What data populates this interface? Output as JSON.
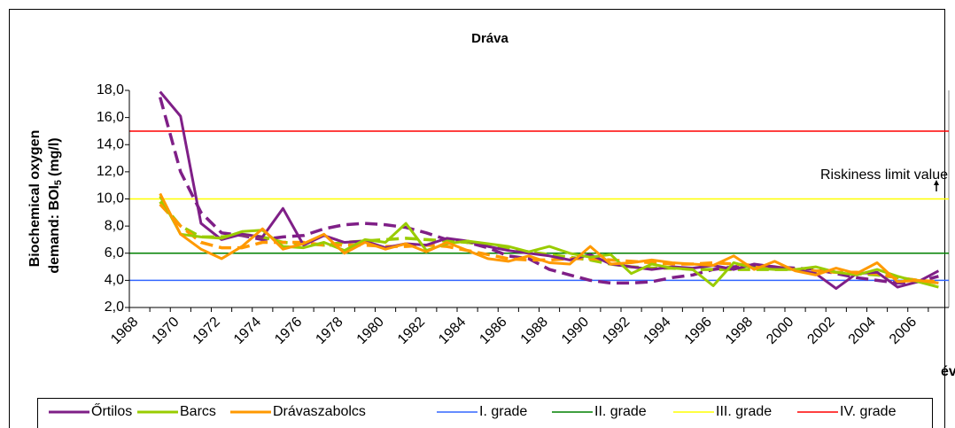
{
  "chart_data": {
    "type": "line",
    "title": "Dráva",
    "y_label": [
      "Biochemical oxygen",
      "demand: BOI",
      "5",
      "(mg/l)"
    ],
    "x_label": "év",
    "annotation": "Riskiness limit value",
    "categories": [
      "1968",
      null,
      "1970",
      null,
      "1972",
      null,
      "1974",
      null,
      "1976",
      null,
      "1978",
      null,
      "1980",
      null,
      "1982",
      null,
      "1984",
      null,
      "1986",
      null,
      "1988",
      null,
      "1990",
      null,
      "1992",
      null,
      "1994",
      null,
      "1996",
      null,
      "1998",
      null,
      "2000",
      null,
      "2002",
      null,
      "2004",
      null,
      "2006",
      null
    ],
    "ylim": [
      2,
      18
    ],
    "yticks": [
      {
        "value": 2,
        "label": "2,0"
      },
      {
        "value": 4,
        "label": "4,0"
      },
      {
        "value": 6,
        "label": "6,0"
      },
      {
        "value": 8,
        "label": "8,0"
      },
      {
        "value": 10,
        "label": "10,0"
      },
      {
        "value": 12,
        "label": "12,0"
      },
      {
        "value": 14,
        "label": "14,0"
      },
      {
        "value": 16,
        "label": "16,0"
      },
      {
        "value": 18,
        "label": "18,0"
      }
    ],
    "series": [
      {
        "name": "Őrtilos",
        "color": "#7f1f87",
        "values": [
          null,
          17.9,
          16.1,
          8.2,
          7.0,
          7.4,
          7.2,
          9.3,
          6.6,
          7.3,
          6.8,
          6.9,
          6.4,
          6.7,
          6.6,
          7.1,
          6.9,
          6.5,
          6.2,
          6.0,
          5.8,
          5.5,
          5.9,
          5.2,
          5.0,
          4.8,
          5.0,
          4.9,
          5.1,
          4.8,
          5.2,
          5.0,
          4.8,
          4.5,
          3.4,
          4.5,
          4.6,
          3.5,
          3.9,
          4.7
        ]
      },
      {
        "name": "Barcs",
        "color": "#99cc00",
        "values": [
          null,
          10.2,
          7.4,
          7.2,
          7.1,
          7.6,
          7.7,
          6.5,
          6.4,
          6.8,
          6.2,
          7.0,
          6.8,
          8.2,
          6.2,
          6.7,
          6.9,
          6.7,
          6.5,
          6.1,
          6.5,
          6.0,
          5.7,
          5.9,
          4.5,
          5.2,
          4.9,
          4.8,
          3.6,
          5.3,
          4.9,
          4.8,
          4.8,
          5.0,
          4.6,
          4.4,
          4.8,
          4.3,
          3.9,
          3.5
        ]
      },
      {
        "name": "Drávaszabolcs",
        "color": "#ff9900",
        "values": [
          null,
          10.4,
          7.4,
          6.3,
          5.6,
          6.5,
          7.8,
          6.3,
          6.7,
          7.4,
          6.0,
          6.8,
          6.3,
          6.7,
          6.1,
          6.8,
          6.2,
          5.6,
          5.4,
          5.8,
          5.3,
          5.2,
          6.5,
          5.2,
          5.3,
          5.5,
          5.3,
          5.2,
          5.1,
          5.8,
          4.8,
          5.4,
          4.7,
          4.4,
          4.9,
          4.5,
          5.3,
          3.9,
          4.0,
          3.8
        ]
      }
    ],
    "trends": [
      {
        "color": "#7f1f87",
        "values": [
          null,
          17.5,
          12.0,
          9.0,
          7.5,
          7.3,
          7.0,
          7.2,
          7.3,
          7.8,
          8.1,
          8.2,
          8.1,
          7.9,
          7.5,
          7.0,
          6.8,
          6.4,
          5.8,
          5.6,
          4.8,
          4.4,
          4.0,
          3.8,
          3.8,
          3.9,
          4.2,
          4.4,
          4.8,
          5.0,
          5.1,
          5.0,
          4.9,
          4.8,
          4.5,
          4.2,
          4.0,
          3.8,
          3.9,
          4.3
        ]
      },
      {
        "color": "#99cc00",
        "values": [
          null,
          9.8,
          8.0,
          7.2,
          7.2,
          7.4,
          7.2,
          6.8,
          6.7,
          6.6,
          6.8,
          6.9,
          7.0,
          7.1,
          7.0,
          6.9,
          6.8,
          6.6,
          6.3,
          6.1,
          5.9,
          5.7,
          5.5,
          5.2,
          5.0,
          4.9,
          4.9,
          4.8,
          4.8,
          4.8,
          4.8,
          4.8,
          4.8,
          4.7,
          4.6,
          4.5,
          4.4,
          4.2,
          4.0,
          3.8
        ]
      },
      {
        "color": "#ff9900",
        "values": [
          null,
          9.6,
          8.0,
          6.8,
          6.4,
          6.4,
          6.8,
          6.8,
          6.8,
          6.6,
          6.6,
          6.6,
          6.5,
          6.5,
          6.6,
          6.5,
          6.2,
          5.9,
          5.6,
          5.5,
          5.5,
          5.6,
          5.6,
          5.5,
          5.4,
          5.3,
          5.2,
          5.2,
          5.3,
          5.2,
          5.1,
          5.0,
          4.8,
          4.7,
          4.6,
          4.6,
          4.5,
          4.2,
          4.0,
          3.9
        ]
      }
    ],
    "levels": [
      {
        "name": "I. grade",
        "color": "#3366ff",
        "value": 4
      },
      {
        "name": "II. grade",
        "color": "#008000",
        "value": 6
      },
      {
        "name": "III. grade",
        "color": "#ffff00",
        "value": 10
      },
      {
        "name": "IV. grade",
        "color": "#ff0000",
        "value": 15
      }
    ]
  }
}
